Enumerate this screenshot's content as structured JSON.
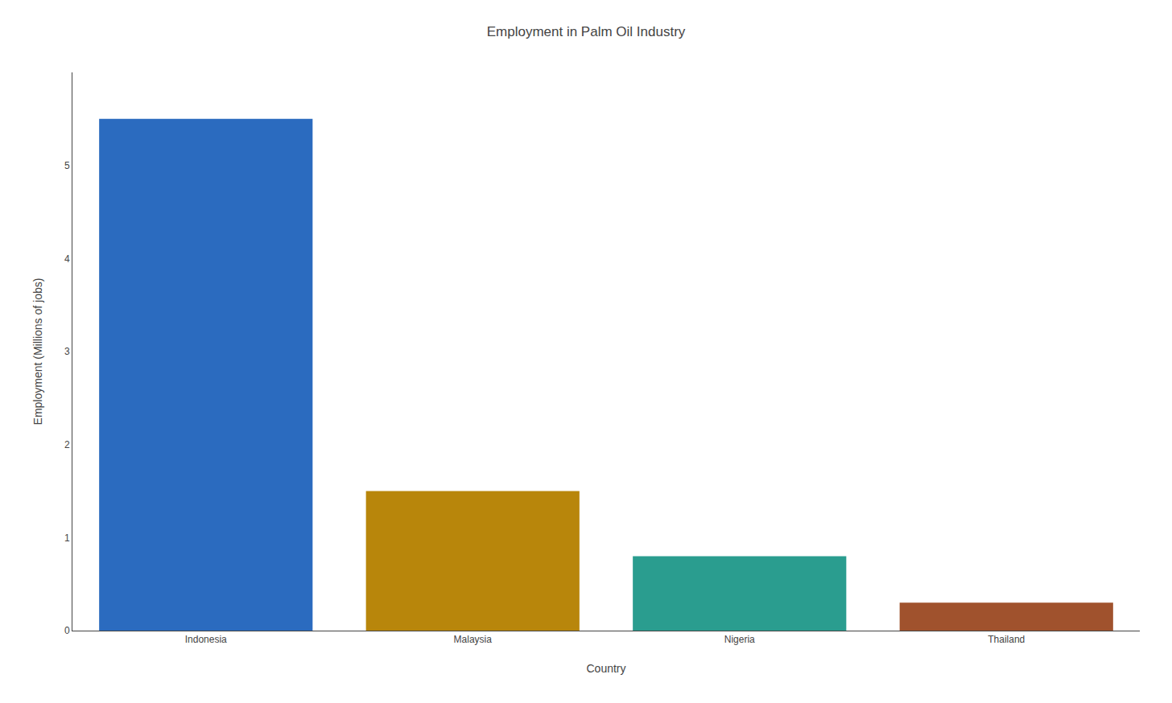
{
  "chart_data": {
    "type": "bar",
    "title": "Employment in Palm Oil Industry",
    "categories": [
      "Indonesia",
      "Malaysia",
      "Nigeria",
      "Thailand"
    ],
    "values": [
      5.5,
      1.5,
      0.8,
      0.3
    ],
    "colors": [
      "#2b6bbf",
      "#b8860b",
      "#2a9d8f",
      "#a0522d"
    ],
    "xlabel": "Country",
    "ylabel": "Employment (Millions of jobs)",
    "ylim": [
      0,
      6.0
    ],
    "yticks": [
      0,
      1,
      2,
      3,
      4,
      5
    ],
    "grid": false
  }
}
